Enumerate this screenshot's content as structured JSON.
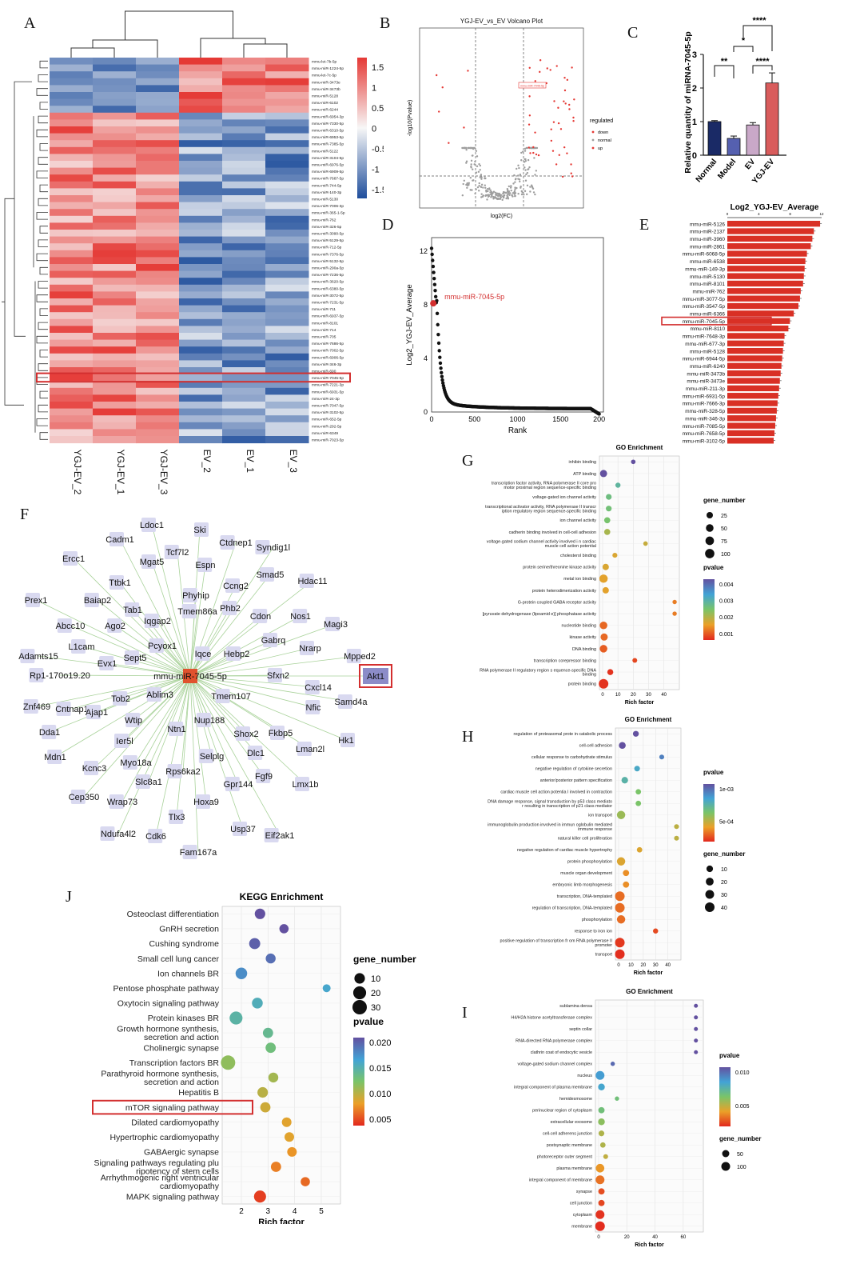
{
  "panel_letters": {
    "A": "A",
    "B": "B",
    "C": "C",
    "D": "D",
    "E": "E",
    "F": "F",
    "G": "G",
    "H": "H",
    "I": "I",
    "J": "J"
  },
  "chart_data": [
    {
      "panel": "A",
      "type": "heatmap",
      "columns": [
        "YGJ-EV_2",
        "YGJ-EV_1",
        "YGJ-EV_3",
        "EV_2",
        "EV_1",
        "EV_3"
      ],
      "rows": [
        "mmu-let-7b-5p",
        "mmu-miR-1224-5p",
        "mmu-let-7c-5p",
        "mmu-miR-3473e",
        "mmu-miR-3473b",
        "mmu-miR-5128",
        "mmu-miR-6102",
        "mmu-miR-6244",
        "mmu-miR-6954-3p",
        "mmu-miR-7330-5p",
        "mmu-miR-6310-5p",
        "mmu-miR-6953-5p",
        "mmu-miR-7385-5p",
        "mmu-miR-5122",
        "mmu-miR-3104-5p",
        "mmu-miR-6976-5p",
        "mmu-miR-6909-5p",
        "mmu-miR-7687-5p",
        "mmu-miR-744-5p",
        "mmu-miR-140-3p",
        "mmu-miR-5130",
        "mmu-miR-7006-3p",
        "mmu-miR-365-1-5p",
        "mmu-miR-762",
        "mmu-miR-326-5p",
        "mmu-miR-3090-5p",
        "mmu-miR-5129-5p",
        "mmu-miR-712-5p",
        "mmu-miR-7376-5p",
        "mmu-miR-5132-5p",
        "mmu-miR-290a-5p",
        "mmu-miR-7236-5p",
        "mmu-miR-3620-5p",
        "mmu-miR-6380-5p",
        "mmu-miR-3072-5p",
        "mmu-miR-7231-5p",
        "mmu-miR-711",
        "mmu-miR-6937-5p",
        "mmu-miR-8101",
        "mmu-miR-714",
        "mmu-miR-705",
        "mmu-miR-7686-5p",
        "mmu-miR-7002-5p",
        "mmu-miR-6906-5p",
        "mmu-miR-346-3p",
        "mmu-miR-690",
        "mmu-miR-7045-5p",
        "mmu-miR-7221-3p",
        "mmu-miR-6931-5p",
        "mmu-miR-24-3p",
        "mmu-miR-7047-5p",
        "mmu-miR-3102-5p",
        "mmu-miR-652-5p",
        "mmu-miR-292-5p",
        "mmu-miR-6349",
        "mmu-miR-7023-5p"
      ],
      "highlight_row": "mmu-miR-7045-5p",
      "colorbar_ticks": [
        "1.5",
        "1",
        "0.5",
        "0",
        "-0.5",
        "-1",
        "-1.5"
      ],
      "colors": {
        "high": "#e53935",
        "mid": "#f7f7f7",
        "low": "#1f4e9c"
      }
    },
    {
      "panel": "B",
      "type": "scatter",
      "title": "YGJ-EV_vs_EV Volcano Plot",
      "xlabel": "log2(FC)",
      "ylabel": "-log10(Pvalue)",
      "legend_title": "regulated",
      "legend": [
        "down",
        "normal",
        "up"
      ],
      "colors": {
        "down": "#e53935",
        "normal": "#9e9e9e",
        "up": "#e53935"
      },
      "tag": "mmu-miR-7045-5p"
    },
    {
      "panel": "C",
      "type": "bar",
      "categories": [
        "Normal",
        "Model",
        "EV",
        "YGJ-EV"
      ],
      "values": [
        1.0,
        0.5,
        0.9,
        2.15
      ],
      "errors": [
        0.03,
        0.07,
        0.07,
        0.3
      ],
      "colors": [
        "#1a2a66",
        "#5560b0",
        "#c9a8c8",
        "#d95c5c"
      ],
      "ylabel": "Relative quantity of miRNA-7045-5p",
      "yticks": [
        "0",
        "1",
        "2",
        "3"
      ],
      "ylim": [
        0,
        3
      ],
      "significance": [
        "**",
        "*",
        "****",
        "****"
      ]
    },
    {
      "panel": "D",
      "type": "scatter",
      "xlabel": "Rank",
      "ylabel": "Log2_YGJ-EV_Average",
      "xticks": [
        "0",
        "500",
        "1000",
        "1500",
        "200"
      ],
      "yticks": [
        "0",
        "4",
        "8",
        "12"
      ],
      "xlim": [
        0,
        2000
      ],
      "ylim": [
        0,
        13
      ],
      "highlight_label": "mmu-miR-7045-5p",
      "highlight_point": [
        20,
        8.1
      ]
    },
    {
      "panel": "E",
      "type": "bar",
      "title": "Log2_YGJ-EV_Average",
      "axis_ticks": [
        "0",
        "4",
        "8",
        "12"
      ],
      "categories": [
        "mmu-miR-5126",
        "mmu-miR-2137",
        "mmu-miR-3960",
        "mmu-miR-2861",
        "mmu-miR-6068-5p",
        "mmu-miR-6538",
        "mmu-miR-149-3p",
        "mmu-miR-5130",
        "mmu-miR-8101",
        "mmu-miR-762",
        "mmu-miR-3077-5p",
        "mmu-miR-3547-5p",
        "mmu-miR-6366",
        "mmu-miR-7045-5p",
        "mmu-miR-8110",
        "mmu-miR-7648-3p",
        "mmu-miR-677-3p",
        "mmu-miR-5128",
        "mmu-miR-6944-5p",
        "mmu-miR-6240",
        "mmu-miR-3473b",
        "mmu-miR-3473e",
        "mmu-miR-211-3p",
        "mmu-miR-6931-5p",
        "mmu-miR-7666-3p",
        "mmu-miR-328-5p",
        "mmu-miR-346-3p",
        "mmu-miR-7085-5p",
        "mmu-miR-7658-5p",
        "mmu-miR-3102-5p"
      ],
      "values": [
        12.0,
        11.2,
        11.0,
        10.8,
        10.3,
        10.1,
        10.0,
        9.9,
        9.8,
        9.5,
        9.4,
        9.2,
        8.6,
        8.1,
        7.9,
        7.4,
        7.3,
        7.2,
        7.1,
        7.0,
        6.9,
        6.8,
        6.7,
        6.6,
        6.5,
        6.4,
        6.3,
        6.2,
        6.1,
        6.0
      ],
      "highlight": "mmu-miR-7045-5p",
      "bar_color": "#d93025"
    },
    {
      "panel": "G",
      "type": "scatter",
      "title": "GO Enrichment",
      "xlabel": "Rich factor",
      "xticks": [
        "0",
        "10",
        "20",
        "30",
        "40"
      ],
      "xlim": [
        0,
        48
      ],
      "size_legend_title": "gene_number",
      "size_legend": [
        "25",
        "50",
        "75",
        "100"
      ],
      "color_legend_title": "pvalue",
      "color_legend": [
        "0.004",
        "0.003",
        "0.002",
        "0.001"
      ],
      "points": [
        {
          "term": "inhibin binding",
          "x": 20,
          "p": 0.0045,
          "n": 3
        },
        {
          "term": "ATP binding",
          "x": 0.6,
          "p": 0.0045,
          "n": 40
        },
        {
          "term": "transcription factor activity, RNA polymerase II core pro motor proximal region sequence-specific binding",
          "x": 10,
          "p": 0.0028,
          "n": 8
        },
        {
          "term": "voltage-gated ion channel activity",
          "x": 4,
          "p": 0.0025,
          "n": 15
        },
        {
          "term": "transcriptional activator activity, RNA polymerase II transcr iption regulatory region sequence-specific binding",
          "x": 4,
          "p": 0.0024,
          "n": 15
        },
        {
          "term": "ion channel activity",
          "x": 3,
          "p": 0.0023,
          "n": 20
        },
        {
          "term": "cadherin binding involved in cell-cell adhesion",
          "x": 3,
          "p": 0.0018,
          "n": 20
        },
        {
          "term": "voltage-gated sodium channel activity involved i n cardiac muscle cell action potential",
          "x": 28,
          "p": 0.0015,
          "n": 3
        },
        {
          "term": "cholesterol binding",
          "x": 8,
          "p": 0.0013,
          "n": 6
        },
        {
          "term": "protein serine/threonine kinase activity",
          "x": 2,
          "p": 0.0013,
          "n": 25
        },
        {
          "term": "metal ion binding",
          "x": 0.6,
          "p": 0.0012,
          "n": 70
        },
        {
          "term": "protein heterodimerization activity",
          "x": 2,
          "p": 0.0012,
          "n": 25
        },
        {
          "term": "G-protein coupled GABA receptor activity",
          "x": 47,
          "p": 0.0008,
          "n": 2
        },
        {
          "term": "[pyruvate dehydrogenase (lipoamid e)] phosphatase activity",
          "x": 47,
          "p": 0.0008,
          "n": 2
        },
        {
          "term": "nucleotide binding",
          "x": 0.6,
          "p": 0.0006,
          "n": 50
        },
        {
          "term": "kinase activity",
          "x": 1,
          "p": 0.0006,
          "n": 40
        },
        {
          "term": "DNA binding",
          "x": 0.6,
          "p": 0.0005,
          "n": 50
        },
        {
          "term": "transcription corepressor binding",
          "x": 21,
          "p": 0.0003,
          "n": 5
        },
        {
          "term": "RNA polymerase II regulatory region s equence-specific DNA binding",
          "x": 5,
          "p": 0.0001,
          "n": 18
        },
        {
          "term": "protein binding",
          "x": 0.6,
          "p": 0.0001,
          "n": 110
        }
      ]
    },
    {
      "panel": "H",
      "type": "scatter",
      "title": "GO Enrichment",
      "xlabel": "Rich factor",
      "xticks": [
        "0",
        "10",
        "20",
        "30",
        "40"
      ],
      "xlim": [
        0,
        48
      ],
      "size_legend_title": "gene_number",
      "size_legend": [
        "10",
        "20",
        "30",
        "40"
      ],
      "color_legend_title": "pvalue",
      "color_legend": [
        "1e-03",
        "5e-04"
      ],
      "points": [
        {
          "term": "regulation of proteasomal prote in catabolic process",
          "x": 14,
          "p": 0.0014,
          "n": 6
        },
        {
          "term": "cell-cell adhesion",
          "x": 3,
          "p": 0.0014,
          "n": 12
        },
        {
          "term": "cellular response to carbohydrate stimulus",
          "x": 35,
          "p": 0.0012,
          "n": 2
        },
        {
          "term": "negative regulation of cytokine secretion",
          "x": 15,
          "p": 0.001,
          "n": 5
        },
        {
          "term": "anterior/posterior pattern specification",
          "x": 5,
          "p": 0.0009,
          "n": 10
        },
        {
          "term": "cardiac muscle cell action potentia l involved in contraction",
          "x": 16,
          "p": 0.0007,
          "n": 4
        },
        {
          "term": "DNA damage response, signal transduction by p53 class mediato r resulting in transcription of p21 class mediator",
          "x": 16,
          "p": 0.0007,
          "n": 4
        },
        {
          "term": "ion transport",
          "x": 2,
          "p": 0.0006,
          "n": 25
        },
        {
          "term": "immunoglobulin production involved in immun oglobulin mediated immune response",
          "x": 47,
          "p": 0.0005,
          "n": 2
        },
        {
          "term": "natural killer cell proliferation",
          "x": 47,
          "p": 0.0005,
          "n": 2
        },
        {
          "term": "negative regulation of cardiac muscle hypertrophy",
          "x": 17,
          "p": 0.0004,
          "n": 4
        },
        {
          "term": "protein phosphorylation",
          "x": 2,
          "p": 0.0004,
          "n": 25
        },
        {
          "term": "muscle organ development",
          "x": 6,
          "p": 0.0003,
          "n": 8
        },
        {
          "term": "embryonic limb morphogenesis",
          "x": 6,
          "p": 0.0003,
          "n": 8
        },
        {
          "term": "transcription, DNA-templated",
          "x": 1,
          "p": 0.0002,
          "n": 40
        },
        {
          "term": "regulation of transcription, DNA-templated",
          "x": 1,
          "p": 0.0002,
          "n": 40
        },
        {
          "term": "phosphorylation",
          "x": 2,
          "p": 0.0002,
          "n": 25
        },
        {
          "term": "response to iron ion",
          "x": 30,
          "p": 0.0001,
          "n": 3
        },
        {
          "term": "positive regulation of transcription fr om RNA polymerase II promoter",
          "x": 1,
          "p": 5e-05,
          "n": 40
        },
        {
          "term": "transport",
          "x": 1,
          "p": 2e-05,
          "n": 40
        }
      ]
    },
    {
      "panel": "I",
      "type": "scatter",
      "title": "GO Enrichment",
      "xlabel": "Rich factor",
      "xticks": [
        "0",
        "20",
        "40",
        "60"
      ],
      "xlim": [
        0,
        72
      ],
      "size_legend_title": "gene_number",
      "size_legend": [
        "50",
        "100"
      ],
      "color_legend_title": "pvalue",
      "color_legend": [
        "0.010",
        "0.005"
      ],
      "points": [
        {
          "term": "sublamina densa",
          "x": 69,
          "p": 0.013,
          "n": 2
        },
        {
          "term": "H4/H2A histone acetyltransferase complex",
          "x": 69,
          "p": 0.013,
          "n": 2
        },
        {
          "term": "septin collar",
          "x": 69,
          "p": 0.013,
          "n": 2
        },
        {
          "term": "RNA-directed RNA polymerase complex",
          "x": 69,
          "p": 0.013,
          "n": 2
        },
        {
          "term": "clathrin coat of endocytic vesicle",
          "x": 69,
          "p": 0.013,
          "n": 2
        },
        {
          "term": "voltage-gated sodium channel complex",
          "x": 10,
          "p": 0.012,
          "n": 4
        },
        {
          "term": "nucleus",
          "x": 1,
          "p": 0.01,
          "n": 100
        },
        {
          "term": "integral component of plasma membrane",
          "x": 2,
          "p": 0.0095,
          "n": 40
        },
        {
          "term": "hemidesmosome",
          "x": 13,
          "p": 0.007,
          "n": 4
        },
        {
          "term": "perinuclear region of cytoplasm",
          "x": 2,
          "p": 0.007,
          "n": 30
        },
        {
          "term": "extracellular exosome",
          "x": 2,
          "p": 0.006,
          "n": 40
        },
        {
          "term": "cell-cell adherens junction",
          "x": 2,
          "p": 0.005,
          "n": 20
        },
        {
          "term": "postsynaptic membrane",
          "x": 3,
          "p": 0.005,
          "n": 15
        },
        {
          "term": "photoreceptor outer segment",
          "x": 5,
          "p": 0.0045,
          "n": 8
        },
        {
          "term": "plasma membrane",
          "x": 1,
          "p": 0.003,
          "n": 90
        },
        {
          "term": "integral component of membrane",
          "x": 1,
          "p": 0.002,
          "n": 100
        },
        {
          "term": "synapse",
          "x": 2,
          "p": 0.001,
          "n": 30
        },
        {
          "term": "cell junction",
          "x": 2,
          "p": 0.0008,
          "n": 30
        },
        {
          "term": "cytoplasm",
          "x": 1,
          "p": 0.0003,
          "n": 100
        },
        {
          "term": "membrane",
          "x": 1,
          "p": 0.0001,
          "n": 130
        }
      ]
    },
    {
      "panel": "J",
      "type": "scatter",
      "title": "KEGG Enrichment",
      "xlabel": "Rich factor",
      "xticks": [
        "2",
        "3",
        "4",
        "5"
      ],
      "xlim": [
        1.4,
        5.6
      ],
      "size_legend_title": "gene_number",
      "size_legend": [
        "10",
        "20",
        "30"
      ],
      "color_legend_title": "pvalue",
      "color_legend": [
        "0.020",
        "0.015",
        "0.010",
        "0.005"
      ],
      "highlight": "mTOR signaling pathway",
      "points": [
        {
          "term": "Osteoclast differentiation",
          "x": 2.7,
          "p": 0.022,
          "n": 10
        },
        {
          "term": "GnRH secretion",
          "x": 3.6,
          "p": 0.022,
          "n": 6
        },
        {
          "term": "Cushing syndrome",
          "x": 2.5,
          "p": 0.021,
          "n": 12
        },
        {
          "term": "Small cell lung cancer",
          "x": 3.1,
          "p": 0.02,
          "n": 8
        },
        {
          "term": "Ion channels BR",
          "x": 2.0,
          "p": 0.018,
          "n": 14
        },
        {
          "term": "Pentose phosphate pathway",
          "x": 5.2,
          "p": 0.016,
          "n": 3
        },
        {
          "term": "Oxytocin signaling pathway",
          "x": 2.6,
          "p": 0.015,
          "n": 11
        },
        {
          "term": "Protein kinases BR",
          "x": 1.8,
          "p": 0.014,
          "n": 20
        },
        {
          "term": "Growth hormone synthesis, secretion and action",
          "x": 3.0,
          "p": 0.013,
          "n": 9
        },
        {
          "term": "Cholinergic synapse",
          "x": 3.1,
          "p": 0.012,
          "n": 9
        },
        {
          "term": "Transcription factors BR",
          "x": 1.5,
          "p": 0.01,
          "n": 28
        },
        {
          "term": "Parathyroid hormone synthesis, secretion and action",
          "x": 3.2,
          "p": 0.009,
          "n": 8
        },
        {
          "term": "Hepatitis B",
          "x": 2.8,
          "p": 0.008,
          "n": 10
        },
        {
          "term": "mTOR signaling pathway",
          "x": 2.9,
          "p": 0.007,
          "n": 9
        },
        {
          "term": "Dilated cardiomyopathy",
          "x": 3.7,
          "p": 0.006,
          "n": 7
        },
        {
          "term": "Hypertrophic cardiomyopathy",
          "x": 3.8,
          "p": 0.006,
          "n": 7
        },
        {
          "term": "GABAergic synapse",
          "x": 3.9,
          "p": 0.005,
          "n": 7
        },
        {
          "term": "Signaling pathways regulating plu ripotency of stem cells",
          "x": 3.3,
          "p": 0.004,
          "n": 9
        },
        {
          "term": "Arrhythmogenic right ventricular cardiomyopathy",
          "x": 4.4,
          "p": 0.003,
          "n": 6
        },
        {
          "term": "MAPK signaling pathway",
          "x": 2.7,
          "p": 0.001,
          "n": 16
        }
      ]
    }
  ],
  "network": {
    "panel": "F",
    "center": "mmu-miR-7045-5p",
    "highlight": "Akt1",
    "genes": [
      "Ldoc1",
      "Ski",
      "Cadm1",
      "Ctdnep1",
      "Syndig1l",
      "Tcf7l2",
      "Ercc1",
      "Mgat5",
      "Espn",
      "Smad5",
      "Hdac11",
      "Ttbk1",
      "Ccng2",
      "Prex1",
      "Baiap2",
      "Phyhip",
      "Phb2",
      "Tab1",
      "Tmem86a",
      "Cdon",
      "Nos1",
      "Magi3",
      "Abcc10",
      "Ago2",
      "Iqgap2",
      "L1cam",
      "Pcyox1",
      "Gabrq",
      "Nrarp",
      "Adamts15",
      "Evx1",
      "Sept5",
      "Iqce",
      "Hebp2",
      "Mpped2",
      "Rp1-170o19.20",
      "Sfxn2",
      "Akt1",
      "Cxcl14",
      "Ablim3",
      "Tob2",
      "Tmem107",
      "Samd4a",
      "Znf469",
      "Cntnap1",
      "Nfic",
      "Dda1",
      "Ajap1",
      "Wtip",
      "Nup188",
      "Shox2",
      "Fkbp5",
      "Ier5l",
      "Ntn1",
      "Hk1",
      "Mdn1",
      "Kcnc3",
      "Myo18a",
      "Dlc1",
      "Lman2l",
      "Selplg",
      "Rps6ka2",
      "Fgf9",
      "Slc8a1",
      "Cep350",
      "Wrap73",
      "Gpr144",
      "Lmx1b",
      "Hoxa9",
      "Tlx3",
      "Usp37",
      "Ndufa4l2",
      "Cdk6",
      "Eif2ak1",
      "Fam167a"
    ]
  }
}
